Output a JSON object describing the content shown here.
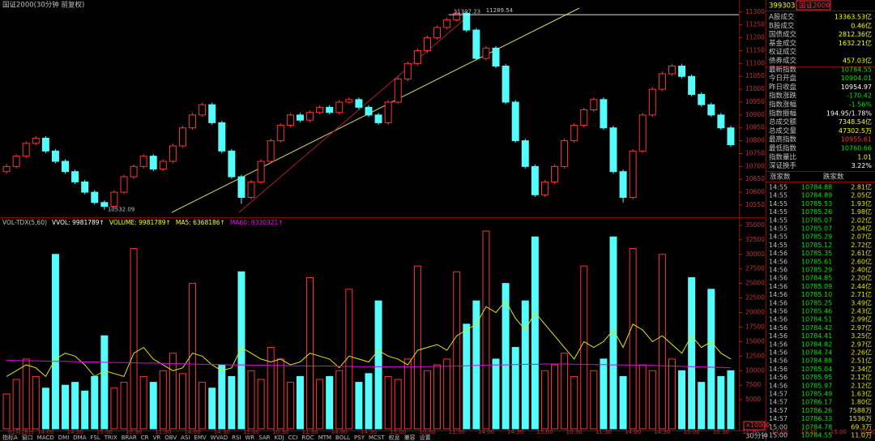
{
  "chart_data": [
    {
      "type": "candlestick",
      "title": "国证2000(30分钟 前复权)",
      "categories": [
        "01月28日",
        null,
        null,
        "14:00",
        null,
        null,
        "14:30",
        null,
        null,
        "15:00",
        null,
        null,
        "10:30",
        null,
        null,
        "11:30",
        null,
        null,
        "14:00",
        null,
        null,
        "14:30",
        null,
        null,
        "15:00",
        null,
        null,
        "10:30",
        null,
        null,
        "11:30",
        null,
        null,
        "14:00",
        null,
        null,
        "14:30",
        null,
        null,
        "15:00",
        null,
        null,
        "10:30",
        null,
        null,
        "11:30",
        null,
        null,
        "14:00",
        null,
        null,
        "14:30",
        null,
        null,
        "15:00",
        null,
        null,
        "10:30",
        null,
        null,
        "11:30",
        null,
        null,
        "14:00",
        null,
        null,
        "14:30",
        null,
        null,
        "15:00",
        null,
        null,
        "10:30",
        null,
        null,
        "11:30",
        null,
        null,
        "14:00",
        null,
        null,
        "14:30",
        null,
        null,
        "15:00",
        null,
        null,
        "10:30",
        null,
        null
      ],
      "ohlc": [
        [
          10680,
          10710,
          10672,
          10700
        ],
        [
          10700,
          10748,
          10692,
          10740
        ],
        [
          10740,
          10798,
          10732,
          10790
        ],
        [
          10790,
          10818,
          10782,
          10810
        ],
        [
          10810,
          10818,
          10752,
          10760
        ],
        [
          10760,
          10768,
          10712,
          10720
        ],
        [
          10720,
          10728,
          10672,
          10680
        ],
        [
          10680,
          10688,
          10632,
          10640
        ],
        [
          10640,
          10648,
          10592,
          10600
        ],
        [
          10600,
          10608,
          10552,
          10560
        ],
        [
          10560,
          10568,
          10532.09,
          10545
        ],
        [
          10545,
          10608,
          10537,
          10600
        ],
        [
          10600,
          10668,
          10592,
          10660
        ],
        [
          10660,
          10708,
          10652,
          10700
        ],
        [
          10700,
          10748,
          10692,
          10740
        ],
        [
          10740,
          10748,
          10682,
          10690
        ],
        [
          10690,
          10728,
          10682,
          10720
        ],
        [
          10720,
          10788,
          10712,
          10780
        ],
        [
          10780,
          10858,
          10772,
          10850
        ],
        [
          10850,
          10908,
          10842,
          10900
        ],
        [
          10900,
          10948,
          10892,
          10940
        ],
        [
          10940,
          10948,
          10862,
          10870
        ],
        [
          10870,
          10878,
          10752,
          10760
        ],
        [
          10760,
          10768,
          10652,
          10660
        ],
        [
          10660,
          10668,
          10555,
          10580
        ],
        [
          10580,
          10648,
          10572,
          10640
        ],
        [
          10640,
          10728,
          10632,
          10720
        ],
        [
          10720,
          10808,
          10712,
          10800
        ],
        [
          10800,
          10868,
          10792,
          10860
        ],
        [
          10860,
          10908,
          10852,
          10900
        ],
        [
          10900,
          10908,
          10872,
          10880
        ],
        [
          10880,
          10918,
          10872,
          10910
        ],
        [
          10910,
          10938,
          10902,
          10930
        ],
        [
          10930,
          10938,
          10902,
          10910
        ],
        [
          10910,
          10958,
          10902,
          10950
        ],
        [
          10950,
          10968,
          10942,
          10960
        ],
        [
          10960,
          10968,
          10922,
          10930
        ],
        [
          10930,
          10938,
          10892,
          10900
        ],
        [
          10900,
          10908,
          10862,
          10870
        ],
        [
          10870,
          10958,
          10862,
          10950
        ],
        [
          10950,
          11048,
          10942,
          11040
        ],
        [
          11040,
          11108,
          11032,
          11100
        ],
        [
          11100,
          11158,
          11092,
          11150
        ],
        [
          11150,
          11208,
          11142,
          11200
        ],
        [
          11200,
          11248,
          11192,
          11240
        ],
        [
          11240,
          11278,
          11232,
          11270
        ],
        [
          11270,
          11307.23,
          11262,
          11295
        ],
        [
          11295,
          11303,
          11222,
          11230
        ],
        [
          11230,
          11238,
          11112,
          11120
        ],
        [
          11120,
          11168,
          11112,
          11160
        ],
        [
          11160,
          11168,
          11082,
          11090
        ],
        [
          11090,
          11098,
          10942,
          10950
        ],
        [
          10950,
          10958,
          10792,
          10800
        ],
        [
          10800,
          10808,
          10692,
          10700
        ],
        [
          10700,
          10708,
          10582,
          10590
        ],
        [
          10590,
          10648,
          10582,
          10640
        ],
        [
          10640,
          10708,
          10632,
          10700
        ],
        [
          10700,
          10808,
          10692,
          10800
        ],
        [
          10800,
          10868,
          10792,
          10860
        ],
        [
          10860,
          10928,
          10852,
          10920
        ],
        [
          10920,
          10968,
          10912,
          10960
        ],
        [
          10960,
          10968,
          10842,
          10850
        ],
        [
          10850,
          10858,
          10672,
          10680
        ],
        [
          10680,
          10688,
          10560,
          10580
        ],
        [
          10580,
          10768,
          10572,
          10760
        ],
        [
          10760,
          10908,
          10752,
          10900
        ],
        [
          10900,
          11008,
          10892,
          11000
        ],
        [
          11000,
          11068,
          10992,
          11060
        ],
        [
          11060,
          11098,
          11052,
          11090
        ],
        [
          11090,
          11098,
          11042,
          11050
        ],
        [
          11050,
          11058,
          10972,
          10980
        ],
        [
          10980,
          10988,
          10932,
          10940
        ],
        [
          10940,
          10948,
          10892,
          10900
        ],
        [
          10900,
          10908,
          10842,
          10850
        ],
        [
          10850,
          10858,
          10776,
          10784.55
        ]
      ],
      "up_color": "#ff3232",
      "down_color": "#54fcfc",
      "annotations": [
        11307.23,
        11289.54,
        10532.09
      ],
      "ylim": [
        10509,
        11309
      ],
      "yticks": [
        10550,
        10600,
        10650,
        10700,
        10750,
        10800,
        10850,
        10900,
        10950,
        11000,
        11050,
        11100,
        11150,
        11200,
        11250,
        11300
      ]
    },
    {
      "type": "bar",
      "legend": [
        {
          "label": "VOL-TDX(5,60)",
          "color": "#c0c0c0"
        },
        {
          "label": "VVOL: 9981789↑",
          "color": "#ffffff"
        },
        {
          "label": "VOLUME: 9981789↑",
          "color": "#ffff00"
        },
        {
          "label": "MA5: 6368186↑",
          "color": "#ffff00"
        },
        {
          "label": "MA60: 9330321↑",
          "color": "#ff00ff"
        }
      ],
      "values": [
        6000,
        8500,
        12000,
        9000,
        7000,
        30000,
        7500,
        8000,
        6500,
        9000,
        16000,
        7000,
        8000,
        31000,
        9000,
        8000,
        10000,
        13000,
        9500,
        25000,
        8000,
        7000,
        11000,
        9000,
        27000,
        10000,
        8500,
        14000,
        12000,
        8000,
        9000,
        26000,
        8500,
        9000,
        10000,
        24000,
        8000,
        9500,
        22000,
        9000,
        8500,
        12000,
        28000,
        10000,
        11000,
        12000,
        27000,
        18000,
        22000,
        34000,
        12000,
        25000,
        14000,
        22000,
        33000,
        10000,
        11000,
        13000,
        9000,
        28000,
        10000,
        12000,
        33000,
        9000,
        31000,
        11000,
        10000,
        30000,
        12000,
        10000,
        26000,
        8000,
        24000,
        9000,
        10000
      ],
      "series": [
        {
          "color": "#e6e600",
          "values": [
            9000,
            10000,
            11000,
            10500,
            9000,
            12000,
            13000,
            12500,
            11000,
            9000,
            10000,
            9500,
            9000,
            13000,
            14000,
            12000,
            11000,
            10000,
            10500,
            13000,
            12500,
            11000,
            10000,
            10500,
            14000,
            13000,
            12000,
            11500,
            12000,
            11000,
            11500,
            13000,
            12500,
            12000,
            10500,
            12500,
            12000,
            11500,
            13500,
            12500,
            12000,
            11000,
            13500,
            14000,
            14500,
            13500,
            16000,
            17000,
            18000,
            21000,
            20000,
            22000,
            19000,
            17000,
            20000,
            18000,
            16000,
            14000,
            12000,
            15000,
            14000,
            15000,
            17000,
            14000,
            18000,
            17000,
            15000,
            16000,
            14500,
            13000,
            16000,
            14000,
            15000,
            13000,
            12000
          ]
        },
        {
          "color": "#e000e0",
          "values": [
            11800,
            11750,
            11700,
            11700,
            11650,
            11600,
            11600,
            11550,
            11500,
            11500,
            11450,
            11400,
            11400,
            11350,
            11300,
            11300,
            11250,
            11200,
            11200,
            11150,
            11100,
            11100,
            11050,
            11000,
            11000,
            10950,
            10950,
            10900,
            10900,
            10850,
            10850,
            10800,
            10800,
            10800,
            10750,
            10750,
            10700,
            10700,
            10700,
            10650,
            10650,
            10650,
            10700,
            10700,
            10750,
            10750,
            10800,
            10850,
            10900,
            10950,
            11000,
            11000,
            11050,
            11100,
            11100,
            11150,
            11150,
            11150,
            11100,
            11100,
            11050,
            11050,
            11000,
            11000,
            10950,
            10950,
            10900,
            10850,
            10800,
            10750,
            10700,
            10650,
            10600,
            10550,
            10500
          ]
        }
      ],
      "y_unit": "×10000",
      "ylim": [
        0,
        36100
      ],
      "yticks": [
        5000,
        7500,
        10000,
        12500,
        15000,
        17500,
        20000,
        22500,
        25000,
        27500,
        30000,
        32500,
        35000
      ]
    }
  ],
  "quote_panel": {
    "code": "399303",
    "name": "国证2000",
    "rows": [
      {
        "label": "A股成交",
        "value": "13363.53亿",
        "color": "#ffff00"
      },
      {
        "label": "B股成交",
        "value": "0.46亿",
        "color": "#ffff00"
      },
      {
        "label": "国债成交",
        "value": "2812.36亿",
        "color": "#ffff00"
      },
      {
        "label": "基金成交",
        "value": "1632.21亿",
        "color": "#ffff00"
      },
      {
        "label": "权证成交",
        "value": null,
        "color": "#ffff00"
      },
      {
        "label": "债券成交",
        "value": "457.03亿",
        "color": "#ffff00"
      },
      {
        "label": "最新指数",
        "value": "10784.55",
        "color": "#00e600"
      },
      {
        "label": "今日开盘",
        "value": "10904.01",
        "color": "#00e600"
      },
      {
        "label": "昨日收盘",
        "value": "10954.97",
        "color": "#ffffff"
      },
      {
        "label": "指数涨跌",
        "value": "-170.42",
        "color": "#00e600"
      },
      {
        "label": "指数涨幅",
        "value": "-1.56%",
        "color": "#00e600"
      },
      {
        "label": "指数振幅",
        "value": "194.95/1.78%",
        "color": "#ffffff"
      },
      {
        "label": "总成交额",
        "value": "7348.54亿",
        "color": "#ffff00"
      },
      {
        "label": "总成交量",
        "value": "47302.5万",
        "color": "#ffff00"
      },
      {
        "label": "最高指数",
        "value": "10955.61",
        "color": "#ff3232"
      },
      {
        "label": "最低指数",
        "value": "10760.66",
        "color": "#00e600"
      },
      {
        "label": "指数量比",
        "value": "1.01",
        "color": "#ffff00"
      },
      {
        "label": "深证换手",
        "value": "3.22%",
        "color": "#ffffff"
      }
    ],
    "breadth": [
      "涨家数",
      "跌家数"
    ]
  },
  "trades": [
    [
      "14:55",
      "10784.88",
      "2.81亿"
    ],
    [
      "14:55",
      "10784.89",
      "2.05亿"
    ],
    [
      "14:55",
      "10785.53",
      "1.93亿"
    ],
    [
      "14:55",
      "10785.26",
      "1.98亿"
    ],
    [
      "14:55",
      "10785.07",
      "2.02亿"
    ],
    [
      "14:55",
      "10785.07",
      "2.04亿"
    ],
    [
      "14:55",
      "10785.29",
      "2.07亿"
    ],
    [
      "14:55",
      "10785.12",
      "2.72亿"
    ],
    [
      "14:56",
      "10785.35",
      "2.61亿"
    ],
    [
      "14:56",
      "10785.61",
      "2.60亿"
    ],
    [
      "14:56",
      "10785.29",
      "2.40亿"
    ],
    [
      "14:56",
      "10784.85",
      "2.20亿"
    ],
    [
      "14:56",
      "10785.09",
      "2.44亿"
    ],
    [
      "14:56",
      "10785.10",
      "2.71亿"
    ],
    [
      "14:56",
      "10785.25",
      "3.49亿"
    ],
    [
      "14:56",
      "10785.46",
      "2.43亿"
    ],
    [
      "14:56",
      "10784.51",
      "2.99亿"
    ],
    [
      "14:56",
      "10784.42",
      "2.97亿"
    ],
    [
      "14:56",
      "10784.41",
      "3.25亿"
    ],
    [
      "14:56",
      "10784.82",
      "2.97亿"
    ],
    [
      "14:56",
      "10784.74",
      "2.26亿"
    ],
    [
      "14:56",
      "10784.88",
      "2.51亿"
    ],
    [
      "14:56",
      "10785.04",
      "2.34亿"
    ],
    [
      "14:56",
      "10785.95",
      "2.12亿"
    ],
    [
      "14:56",
      "10785.97",
      "2.12亿"
    ],
    [
      "14:57",
      "10785.49",
      "1.63亿"
    ],
    [
      "14:57",
      "10786.17",
      "1.80亿"
    ],
    [
      "14:57",
      "10786.26",
      "7588万"
    ],
    [
      "14:57",
      "10786.33",
      "1536万"
    ],
    [
      "15:00",
      "10784.78",
      "69.3万"
    ],
    [
      "15:00",
      "10784.55",
      "11.0万"
    ]
  ],
  "tab_bar": {
    "tabs": [
      "指标A",
      "窗口",
      "MACD",
      "DMI",
      "DMA",
      "FSL",
      "TRIX",
      "BRAR",
      "CR",
      "VR",
      "OBV",
      "ASI",
      "EMV",
      "WVAD",
      "RSI",
      "WR",
      "SAR",
      "KDJ",
      "CCI",
      "ROC",
      "MTM",
      "BOLL",
      "PSY",
      "MCST",
      "权息",
      "兼容",
      "设置"
    ],
    "period": "30分钟"
  }
}
